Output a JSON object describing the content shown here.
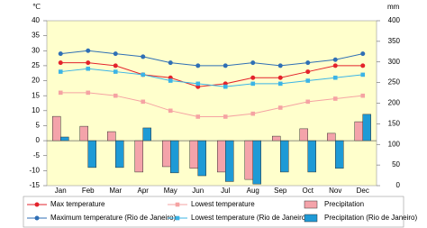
{
  "chart_data": {
    "type": "combo",
    "y_label": "℃",
    "y2_label": "mm",
    "categories": [
      "Jan",
      "Feb",
      "Mar",
      "Apr",
      "May",
      "Jun",
      "Jul",
      "Aug",
      "Sep",
      "Oct",
      "Nov",
      "Dec"
    ],
    "ylim": [
      -15,
      40
    ],
    "yticks": [
      -15,
      -10,
      -5,
      0,
      5,
      10,
      15,
      20,
      25,
      30,
      35,
      40
    ],
    "y2lim": [
      0,
      400
    ],
    "y2ticks": [
      0,
      50,
      100,
      150,
      200,
      250,
      300,
      350,
      400
    ],
    "grid": false,
    "series": [
      {
        "name": "Max temperature",
        "type": "line",
        "marker": "circle",
        "color": "#e3232c",
        "values": [
          26,
          26,
          25,
          22,
          21,
          18,
          19,
          21,
          21,
          23,
          25,
          25
        ]
      },
      {
        "name": "Lowest temperature",
        "type": "line",
        "marker": "square",
        "color": "#f5a3a3",
        "values": [
          16,
          16,
          15,
          13,
          10,
          8,
          8,
          9,
          11,
          13,
          14,
          15
        ]
      },
      {
        "name": "Precipitation",
        "type": "bar",
        "axis": "y2",
        "color": "#f4a3aa",
        "values": [
          168,
          144,
          131,
          33,
          46,
          42,
          33,
          15,
          120,
          138,
          127,
          155
        ]
      },
      {
        "name": "Maximum temperature (Rio de Janeiro)",
        "type": "line",
        "marker": "circle",
        "color": "#2f6fb5",
        "values": [
          29,
          30,
          29,
          28,
          26,
          25,
          25,
          26,
          25,
          26,
          27,
          29
        ]
      },
      {
        "name": "Lowest temperature (Rio de Janeiro)",
        "type": "line",
        "marker": "square",
        "color": "#3bb4e6",
        "values": [
          23,
          24,
          23,
          22,
          20,
          19,
          18,
          19,
          19,
          20,
          21,
          22
        ]
      },
      {
        "name": "Precipitation (Rio de Janeiro)",
        "type": "bar",
        "axis": "y2",
        "color": "#1e9ad6",
        "values": [
          118,
          44,
          44,
          140,
          31,
          24,
          10,
          4,
          33,
          33,
          42,
          173
        ]
      }
    ]
  }
}
